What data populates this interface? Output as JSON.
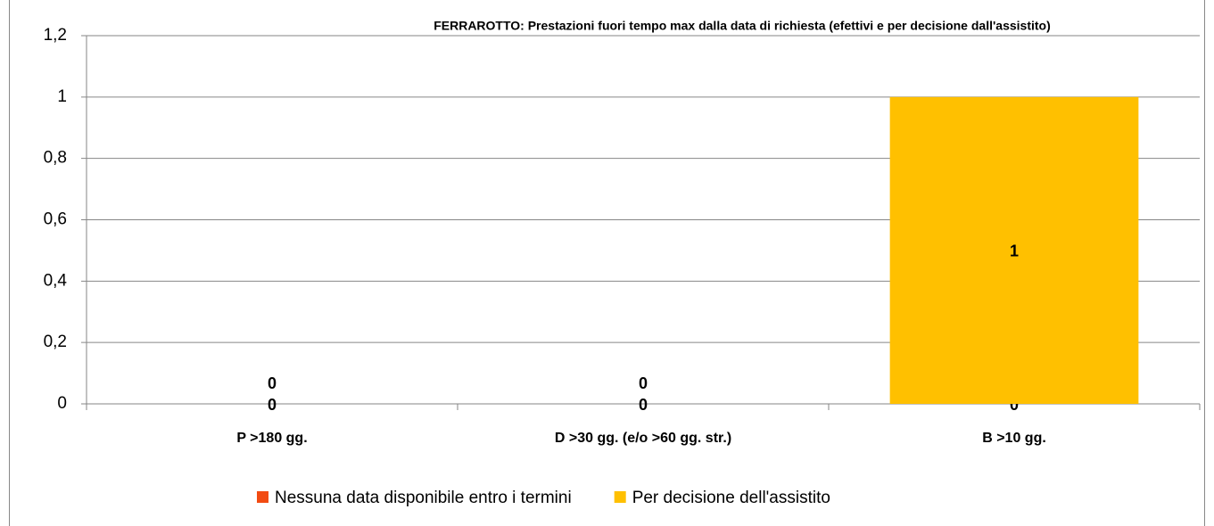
{
  "chart_data": {
    "type": "stacked_bar",
    "title": "FERRAROTTO: Prestazioni fuori tempo max dalla data di richiesta (efettivi e per decisione dall'assistito)",
    "categories": [
      "P >180 gg.",
      "D >30 gg. (e/o >60 gg. str.)",
      "B >10 gg."
    ],
    "series": [
      {
        "name": "Nessuna data disponibile entro i termini",
        "color": "#f24b12",
        "values": [
          0,
          0,
          0
        ]
      },
      {
        "name": "Per decisione dell'assistito",
        "color": "#ffc000",
        "values": [
          0,
          0,
          1
        ]
      }
    ],
    "ylim": [
      0,
      1.2
    ],
    "yticks": [
      0,
      {
        "value": 0.2,
        "label": "0,2"
      },
      {
        "value": 0.4,
        "label": "0,4"
      },
      {
        "value": 0.6,
        "label": "0,6"
      },
      {
        "value": 0.8,
        "label": "0,8"
      },
      1,
      {
        "value": 1.2,
        "label": "1,2"
      }
    ],
    "grid": true,
    "legend": "bottom"
  }
}
